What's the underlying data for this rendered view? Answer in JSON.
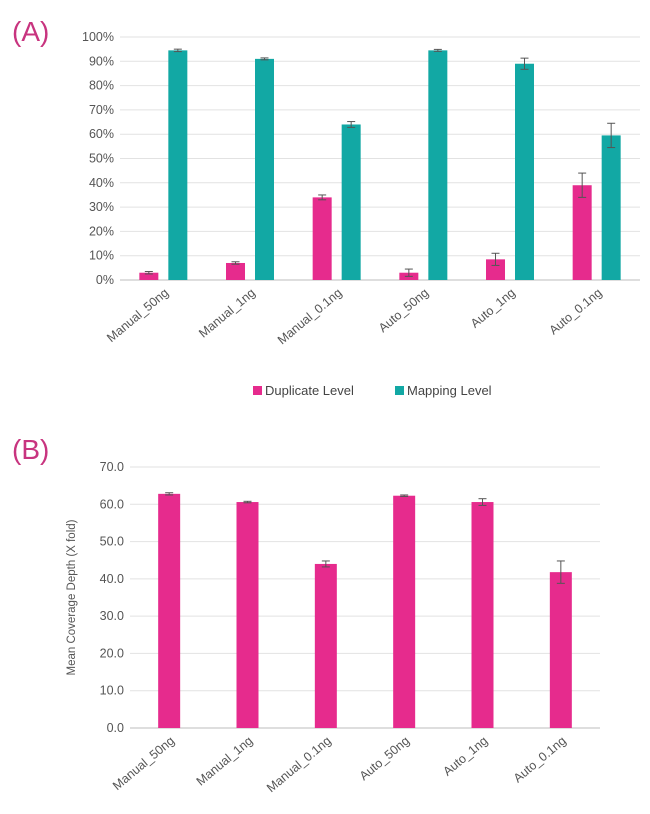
{
  "panels": {
    "a_label": "(A)",
    "b_label": "(B)"
  },
  "chart_data": [
    {
      "type": "bar",
      "categories": [
        "Manual_50ng",
        "Manual_1ng",
        "Manual_0.1ng",
        "Auto_50ng",
        "Auto_1ng",
        "Auto_0.1ng"
      ],
      "series": [
        {
          "name": "Duplicate Level",
          "color": "#e62b8d",
          "values": [
            3,
            7,
            34,
            3,
            8.5,
            39
          ],
          "errors": [
            0.5,
            0.5,
            1,
            1.5,
            2.5,
            5
          ]
        },
        {
          "name": "Mapping Level",
          "color": "#12a8a4",
          "values": [
            94.5,
            91,
            64,
            94.5,
            89,
            59.5
          ],
          "errors": [
            0.5,
            0.4,
            1.2,
            0.4,
            2.3,
            5
          ]
        }
      ],
      "ylim": [
        0,
        100
      ],
      "yticks": [
        "0%",
        "10%",
        "20%",
        "30%",
        "40%",
        "50%",
        "60%",
        "70%",
        "80%",
        "90%",
        "100%"
      ],
      "ylabel": "",
      "xlabel": "",
      "grid": true,
      "legend_position": "bottom"
    },
    {
      "type": "bar",
      "categories": [
        "Manual_50ng",
        "Manual_1ng",
        "Manual_0.1ng",
        "Auto_50ng",
        "Auto_1ng",
        "Auto_0.1ng"
      ],
      "series": [
        {
          "color": "#e62b8d",
          "values": [
            62.8,
            60.6,
            44.0,
            62.3,
            60.6,
            41.8
          ],
          "errors": [
            0.3,
            0.2,
            0.8,
            0.2,
            0.9,
            3.0
          ]
        }
      ],
      "ylim": [
        0,
        70
      ],
      "yticks": [
        "0.0",
        "10.0",
        "20.0",
        "30.0",
        "40.0",
        "50.0",
        "60.0",
        "70.0"
      ],
      "ylabel": "Mean Coverage Depth (X fold)",
      "xlabel": "",
      "grid": true
    }
  ]
}
